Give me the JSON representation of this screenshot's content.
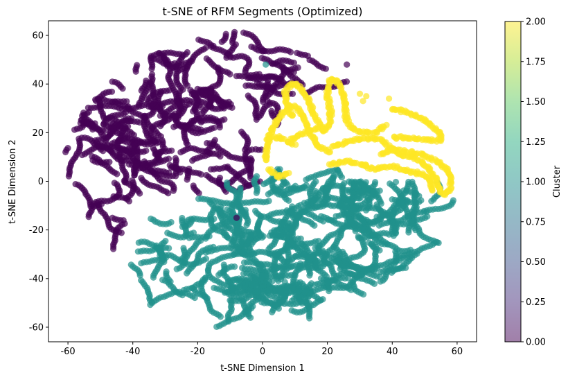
{
  "chart_data": {
    "type": "scatter",
    "title": "t-SNE of RFM Segments (Optimized)",
    "xlabel": "t-SNE Dimension 1",
    "ylabel": "t-SNE Dimension 2",
    "xlim": [
      -66,
      66
    ],
    "ylim": [
      -66,
      66
    ],
    "xticks": [
      -60,
      -40,
      -20,
      0,
      20,
      40,
      60
    ],
    "yticks": [
      -60,
      -40,
      -20,
      0,
      20,
      40,
      60
    ],
    "grid": false,
    "colorbar": {
      "label": "Cluster",
      "range": [
        0.0,
        2.0
      ],
      "ticks": [
        "0.00",
        "0.25",
        "0.50",
        "0.75",
        "1.00",
        "1.25",
        "1.50",
        "1.75",
        "2.00"
      ],
      "colormap": "viridis",
      "alpha": 0.5
    },
    "marker_alpha": 0.7,
    "series": [
      {
        "cluster": 0,
        "color": "#440154",
        "regions": [
          {
            "cx": -30,
            "cy": 5,
            "rx": 32,
            "ry": 36
          },
          {
            "cx": -5,
            "cy": 38,
            "rx": 28,
            "ry": 18
          },
          {
            "cx": -40,
            "cy": 20,
            "rx": 18,
            "ry": 20
          },
          {
            "cx": -20,
            "cy": 50,
            "rx": 25,
            "ry": 8
          }
        ],
        "region_weights": [
          0.45,
          0.25,
          0.2,
          0.1
        ],
        "count": 1600
      },
      {
        "cluster": 1,
        "color": "#21918c",
        "regions": [
          {
            "cx": 20,
            "cy": -20,
            "rx": 32,
            "ry": 25
          },
          {
            "cx": -12,
            "cy": -33,
            "rx": 30,
            "ry": 20
          },
          {
            "cx": 35,
            "cy": -10,
            "rx": 18,
            "ry": 15
          },
          {
            "cx": 5,
            "cy": -45,
            "rx": 20,
            "ry": 8
          }
        ],
        "region_weights": [
          0.45,
          0.3,
          0.15,
          0.1
        ],
        "count": 2600
      },
      {
        "cluster": 2,
        "color": "#fde725",
        "curves": [
          [
            [
              1,
              9
            ],
            [
              2,
              18
            ],
            [
              5,
              26
            ],
            [
              9,
              31
            ],
            [
              12,
              28
            ],
            [
              14,
              22
            ],
            [
              17,
              15
            ],
            [
              21,
              12
            ]
          ],
          [
            [
              9,
              27
            ],
            [
              7,
              36
            ],
            [
              10,
              40
            ],
            [
              14,
              34
            ],
            [
              16,
              27
            ],
            [
              19,
              21
            ],
            [
              21,
              27
            ],
            [
              20,
              38
            ],
            [
              22,
              42
            ],
            [
              25,
              35
            ],
            [
              26,
              25
            ],
            [
              29,
              21
            ],
            [
              34,
              20
            ],
            [
              38,
              23
            ]
          ],
          [
            [
              1,
              17
            ],
            [
              5,
              18
            ],
            [
              10,
              15
            ]
          ],
          [
            [
              9,
              17
            ],
            [
              13,
              20
            ],
            [
              17,
              22
            ]
          ],
          [
            [
              22,
              14
            ],
            [
              28,
              17
            ],
            [
              36,
              17
            ],
            [
              41,
              12
            ],
            [
              46,
              10
            ],
            [
              50,
              7
            ],
            [
              53,
              2
            ],
            [
              55,
              -4
            ],
            [
              57,
              -5
            ],
            [
              58,
              0
            ],
            [
              56,
              6
            ],
            [
              51,
              10
            ],
            [
              45,
              12
            ],
            [
              40,
              13
            ],
            [
              36,
              11
            ]
          ],
          [
            [
              21,
              7
            ],
            [
              26,
              8
            ],
            [
              31,
              7
            ],
            [
              34,
              5
            ],
            [
              40,
              6
            ],
            [
              45,
              4
            ],
            [
              49,
              3
            ],
            [
              52,
              0
            ],
            [
              52,
              -4
            ]
          ],
          [
            [
              40,
              30
            ],
            [
              45,
              28
            ],
            [
              50,
              25
            ],
            [
              53,
              22
            ],
            [
              55,
              19
            ],
            [
              55,
              17
            ],
            [
              50,
              17
            ],
            [
              45,
              18
            ],
            [
              40,
              18
            ]
          ],
          [
            [
              2,
              5
            ],
            [
              5,
              2
            ],
            [
              8,
              4
            ]
          ]
        ],
        "count": 1500
      }
    ],
    "stray_points": [
      {
        "x": 30,
        "y": 36,
        "cluster": 2
      },
      {
        "x": 31,
        "y": 33,
        "cluster": 2
      },
      {
        "x": 39,
        "y": 34,
        "cluster": 2
      },
      {
        "x": 32,
        "y": 35,
        "cluster": 2
      },
      {
        "x": -8,
        "y": -15,
        "cluster": 0
      },
      {
        "x": 1,
        "y": 48,
        "cluster": 1
      },
      {
        "x": 26,
        "y": 48,
        "cluster": 0
      }
    ]
  }
}
